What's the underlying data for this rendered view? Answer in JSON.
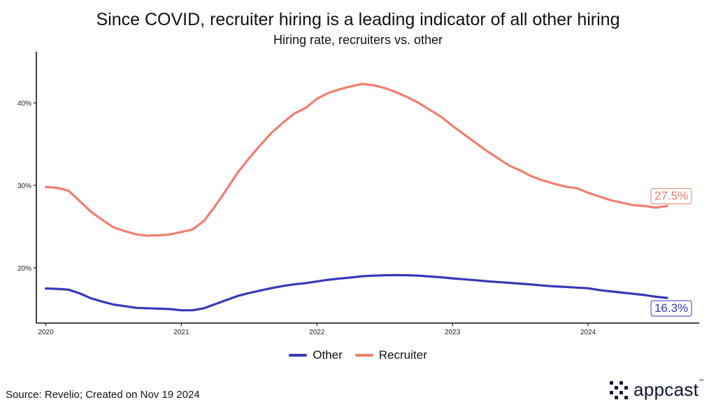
{
  "header": {
    "title": "Since COVID, recruiter hiring is a leading indicator of all other hiring",
    "subtitle": "Hiring rate, recruiters vs. other"
  },
  "footer": {
    "source": "Source: Revelio; Created on Nov 19 2024",
    "logo_text": "appcast",
    "logo_tm": "™"
  },
  "chart_data": {
    "type": "line",
    "title": "Since COVID, recruiter hiring is a leading indicator of all other hiring",
    "subtitle": "Hiring rate, recruiters vs. other",
    "xlabel": "",
    "ylabel": "",
    "xlim": [
      2019.93,
      2024.82
    ],
    "ylim": [
      13.3,
      46.2
    ],
    "x_ticks": [
      2020,
      2021,
      2022,
      2023,
      2024
    ],
    "x_tick_labels": [
      "2020",
      "2021",
      "2022",
      "2023",
      "2024"
    ],
    "y_ticks": [
      20,
      30,
      40
    ],
    "y_tick_labels": [
      "20%",
      "30%",
      "40%"
    ],
    "grid": false,
    "legend_position": "bottom",
    "x": [
      2020.0,
      2020.083,
      2020.167,
      2020.25,
      2020.333,
      2020.417,
      2020.5,
      2020.583,
      2020.667,
      2020.75,
      2020.833,
      2020.917,
      2021.0,
      2021.083,
      2021.167,
      2021.25,
      2021.333,
      2021.417,
      2021.5,
      2021.583,
      2021.667,
      2021.75,
      2021.833,
      2021.917,
      2022.0,
      2022.083,
      2022.167,
      2022.25,
      2022.333,
      2022.417,
      2022.5,
      2022.583,
      2022.667,
      2022.75,
      2022.833,
      2022.917,
      2023.0,
      2023.083,
      2023.167,
      2023.25,
      2023.333,
      2023.417,
      2023.5,
      2023.583,
      2023.667,
      2023.75,
      2023.833,
      2023.917,
      2024.0,
      2024.083,
      2024.167,
      2024.25,
      2024.333,
      2024.417,
      2024.5,
      2024.583
    ],
    "series": [
      {
        "name": "Other",
        "color": "#3638b8",
        "end_label": "16.3%",
        "values": [
          17.5,
          17.45,
          17.35,
          16.9,
          16.3,
          15.9,
          15.55,
          15.35,
          15.15,
          15.1,
          15.05,
          15.0,
          14.85,
          14.85,
          15.1,
          15.6,
          16.1,
          16.6,
          16.95,
          17.25,
          17.55,
          17.8,
          18.0,
          18.15,
          18.35,
          18.55,
          18.7,
          18.82,
          18.98,
          19.05,
          19.1,
          19.12,
          19.1,
          19.05,
          18.95,
          18.85,
          18.72,
          18.62,
          18.5,
          18.38,
          18.28,
          18.18,
          18.08,
          17.98,
          17.85,
          17.75,
          17.68,
          17.6,
          17.52,
          17.3,
          17.15,
          17.0,
          16.85,
          16.7,
          16.5,
          16.35
        ]
      },
      {
        "name": "Recruiter",
        "color": "#f07e6e",
        "end_label": "27.5%",
        "values": [
          29.8,
          29.7,
          29.35,
          28.1,
          26.8,
          25.8,
          24.9,
          24.45,
          24.05,
          23.9,
          23.95,
          24.05,
          24.35,
          24.65,
          25.7,
          27.5,
          29.5,
          31.6,
          33.3,
          34.9,
          36.4,
          37.6,
          38.7,
          39.4,
          40.5,
          41.2,
          41.65,
          42.0,
          42.3,
          42.15,
          41.8,
          41.3,
          40.7,
          40.0,
          39.15,
          38.3,
          37.2,
          36.2,
          35.2,
          34.2,
          33.3,
          32.4,
          31.8,
          31.1,
          30.6,
          30.2,
          29.85,
          29.65,
          29.1,
          28.65,
          28.2,
          27.9,
          27.6,
          27.5,
          27.3,
          27.5
        ]
      }
    ]
  }
}
